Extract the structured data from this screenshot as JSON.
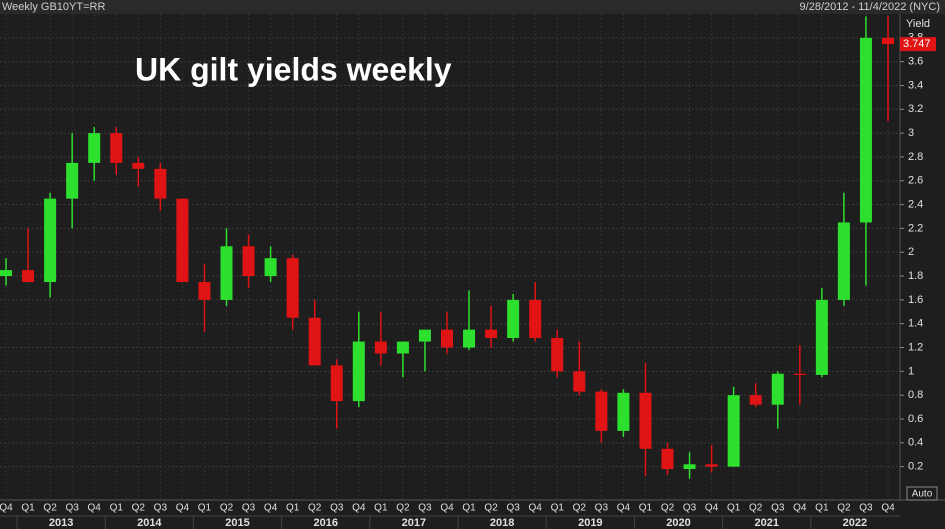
{
  "header": {
    "instrument": "Weekly GB10YT=RR",
    "date_range": "9/28/2012 - 11/4/2022 (NYC)"
  },
  "chart_data": {
    "type": "candlestick",
    "title": "UK gilt yields weekly",
    "y_label": "Yield",
    "categories": [
      "Q4",
      "Q1",
      "Q2",
      "Q3",
      "Q4",
      "Q1",
      "Q2",
      "Q3",
      "Q4",
      "Q1",
      "Q2",
      "Q3",
      "Q4",
      "Q1",
      "Q2",
      "Q3",
      "Q4",
      "Q1",
      "Q2",
      "Q3",
      "Q4",
      "Q1",
      "Q2",
      "Q3",
      "Q4",
      "Q1",
      "Q2",
      "Q3",
      "Q4",
      "Q1",
      "Q2",
      "Q3",
      "Q4",
      "Q1",
      "Q2",
      "Q3",
      "Q4",
      "Q1",
      "Q2",
      "Q3",
      "Q4"
    ],
    "years": [
      "2013",
      "2014",
      "2015",
      "2016",
      "2017",
      "2018",
      "2019",
      "2020",
      "2021",
      "2022"
    ],
    "open": [
      1.8,
      1.85,
      1.75,
      2.45,
      2.75,
      3.0,
      2.75,
      2.7,
      2.45,
      1.75,
      1.6,
      2.05,
      1.8,
      1.95,
      1.45,
      1.05,
      0.75,
      1.25,
      1.15,
      1.25,
      1.35,
      1.2,
      1.35,
      1.28,
      1.6,
      1.28,
      1.0,
      0.83,
      0.5,
      0.82,
      0.35,
      0.18,
      0.22,
      0.2,
      0.8,
      0.72,
      0.98,
      0.97,
      1.6,
      2.25,
      3.8
    ],
    "high": [
      1.95,
      2.2,
      2.5,
      3.0,
      3.05,
      3.05,
      2.8,
      2.75,
      2.45,
      1.9,
      2.2,
      2.15,
      2.05,
      1.98,
      1.6,
      1.1,
      1.5,
      1.5,
      1.25,
      1.35,
      1.5,
      1.68,
      1.55,
      1.65,
      1.75,
      1.35,
      1.25,
      0.85,
      0.85,
      1.07,
      0.4,
      0.32,
      0.38,
      0.87,
      0.9,
      1.0,
      1.22,
      1.7,
      2.5,
      3.98,
      3.98
    ],
    "low": [
      1.72,
      1.75,
      1.62,
      2.2,
      2.6,
      2.65,
      2.55,
      2.35,
      1.75,
      1.33,
      1.55,
      1.7,
      1.75,
      1.35,
      1.05,
      0.52,
      0.7,
      1.05,
      0.95,
      1.0,
      1.15,
      1.18,
      1.2,
      1.25,
      1.25,
      0.95,
      0.8,
      0.4,
      0.45,
      0.12,
      0.13,
      0.1,
      0.15,
      0.2,
      0.7,
      0.52,
      0.72,
      0.95,
      1.55,
      1.72,
      3.1
    ],
    "close": [
      1.85,
      1.75,
      2.45,
      2.75,
      3.0,
      2.75,
      2.7,
      2.45,
      1.75,
      1.6,
      2.05,
      1.8,
      1.95,
      1.45,
      1.05,
      0.75,
      1.25,
      1.15,
      1.25,
      1.35,
      1.2,
      1.35,
      1.28,
      1.6,
      1.28,
      1.0,
      0.83,
      0.5,
      0.82,
      0.35,
      0.18,
      0.22,
      0.2,
      0.8,
      0.72,
      0.98,
      0.97,
      1.6,
      2.25,
      3.8,
      3.747
    ],
    "up_color": "#2ee02e",
    "down_color": "#e01414",
    "last_value": 3.747,
    "auto_label": "Auto",
    "ylim": [
      -0.08,
      4.0
    ],
    "yticks": [
      0.2,
      0.4,
      0.6,
      0.8,
      1,
      1.2,
      1.4,
      1.6,
      1.8,
      2,
      2.2,
      2.4,
      2.6,
      2.8,
      3,
      3.2,
      3.4,
      3.6,
      3.8
    ],
    "grid": true
  }
}
